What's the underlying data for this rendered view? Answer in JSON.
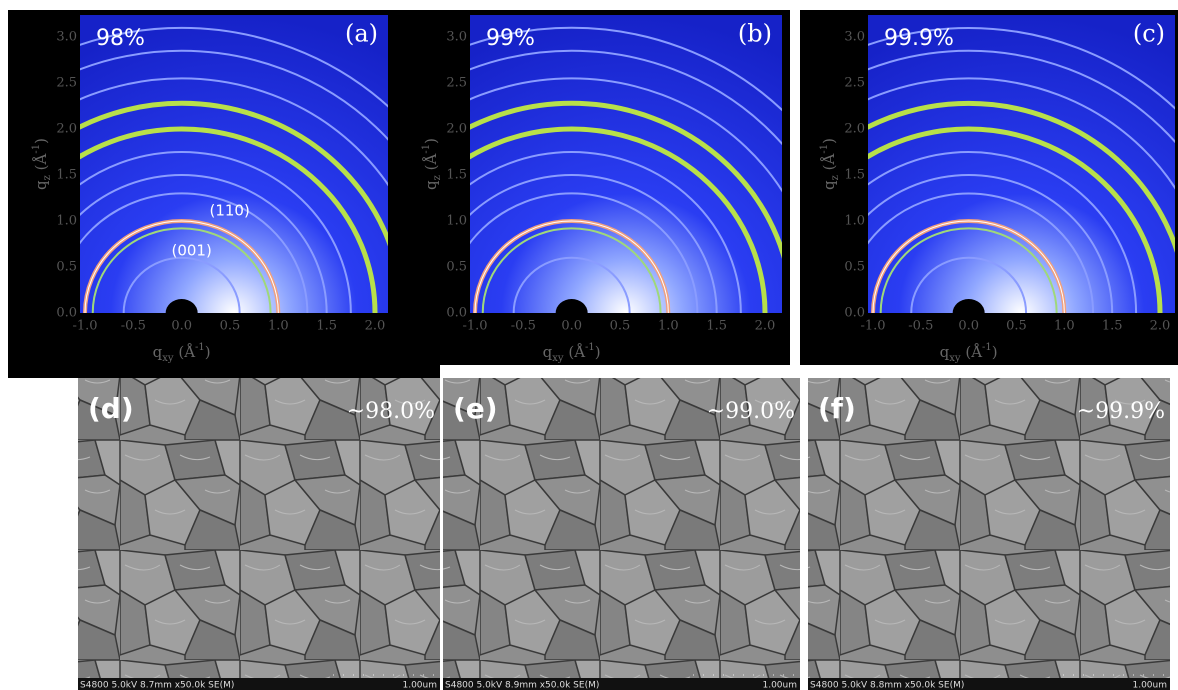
{
  "giwaxs_panels": [
    {
      "label": "(a)",
      "purity": "98%",
      "annotations": [
        "(110)",
        "(001)"
      ]
    },
    {
      "label": "(b)",
      "purity": "99%"
    },
    {
      "label": "(c)",
      "purity": "99.9%"
    }
  ],
  "x_ticks": [
    "-1.0",
    "-0.5",
    "0.0",
    "0.5",
    "1.0",
    "1.5",
    "2.0"
  ],
  "y_ticks": [
    "0.0",
    "0.5",
    "1.0",
    "1.5",
    "2.0",
    "2.5",
    "3.0"
  ],
  "x_label": [
    "q",
    "xy",
    " (Å",
    "-1",
    ")"
  ],
  "y_label": [
    "q",
    "z",
    " (Å",
    "-1",
    ")"
  ],
  "sem_panels": [
    {
      "label": "(d)",
      "purity": "~98.0%",
      "footer": "S4800 5.0kV 8.7mm x50.0k SE(M)",
      "scale": "1.00um"
    },
    {
      "label": "(e)",
      "purity": "~99.0%",
      "footer": "S4800 5.0kV 8.9mm x50.0k SE(M)",
      "scale": "1.00um"
    },
    {
      "label": "(f)",
      "purity": "~99.9%",
      "footer": "S4800 5.0kV 8.8mm x50.0k SE(M)",
      "scale": "1.00um"
    }
  ]
}
